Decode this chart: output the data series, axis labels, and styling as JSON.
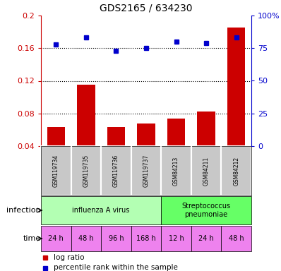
{
  "title": "GDS2165 / 634230",
  "samples": [
    "GSM119734",
    "GSM119735",
    "GSM119736",
    "GSM119737",
    "GSM84213",
    "GSM84211",
    "GSM84212"
  ],
  "log_ratio": [
    0.063,
    0.115,
    0.063,
    0.068,
    0.074,
    0.082,
    0.185
  ],
  "percentile_rank_pct": [
    78,
    83,
    73,
    75,
    80,
    79,
    83
  ],
  "bar_color": "#cc0000",
  "dot_color": "#0000cc",
  "ylim_left": [
    0.04,
    0.2
  ],
  "ylim_right": [
    0,
    100
  ],
  "yticks_left": [
    0.04,
    0.08,
    0.12,
    0.16,
    0.2
  ],
  "yticks_right": [
    0,
    25,
    50,
    75,
    100
  ],
  "ytick_labels_left": [
    "0.04",
    "0.08",
    "0.12",
    "0.16",
    "0.2"
  ],
  "ytick_labels_right": [
    "0",
    "25",
    "50",
    "75",
    "100%"
  ],
  "dotted_lines": [
    0.08,
    0.12,
    0.16
  ],
  "infection_groups": [
    {
      "label": "influenza A virus",
      "start": 0,
      "end": 4,
      "color": "#b3ffb3"
    },
    {
      "label": "Streptococcus\npneumoniae",
      "start": 4,
      "end": 7,
      "color": "#66ff66"
    }
  ],
  "time_labels": [
    "24 h",
    "48 h",
    "96 h",
    "168 h",
    "12 h",
    "24 h",
    "48 h"
  ],
  "infection_label": "infection",
  "time_label": "time",
  "legend_red_label": "log ratio",
  "legend_blue_label": "percentile rank within the sample",
  "sample_bg_color": "#c8c8c8",
  "left_axis_color": "#cc0000",
  "right_axis_color": "#0000cc",
  "magenta_color": "#ee82ee",
  "border_color": "#000000"
}
